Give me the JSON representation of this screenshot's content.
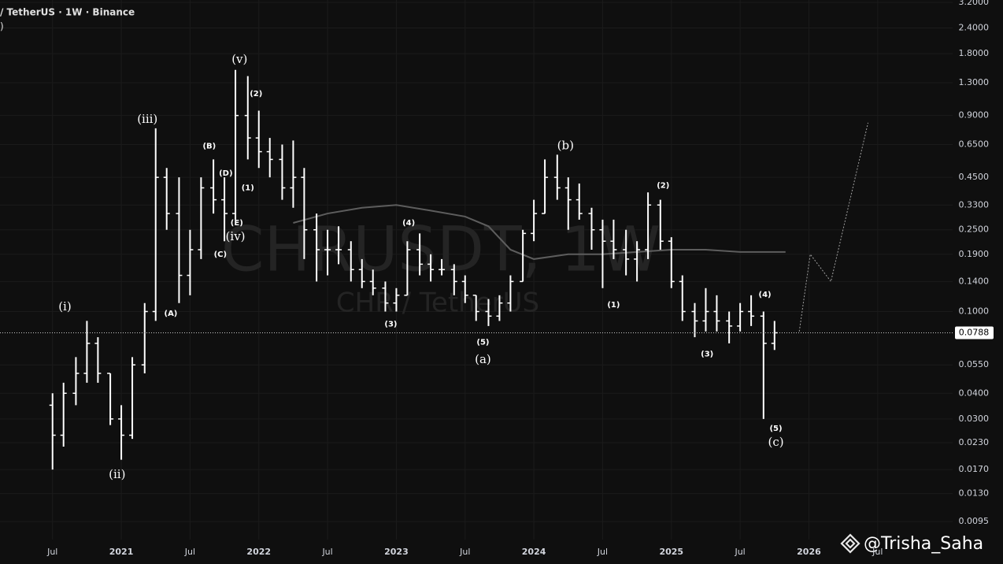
{
  "chart_data": {
    "type": "ohlc",
    "log_scale": true,
    "grid": true,
    "color": "#ffffff",
    "title": "/ TetherUS · 1W · Binance",
    "subtitle": ")",
    "watermark": "CHRUSDT, 1W",
    "watermark_subtitle": "CHR / TetherUS",
    "author": "@Trisha_Saha",
    "xlim": [
      2020.118,
      2027.045
    ],
    "ylim": [
      0.00776,
      3.285
    ],
    "xticks": [
      {
        "value": 2020.5,
        "label": "Jul"
      },
      2021,
      {
        "value": 2021.5,
        "label": "Jul"
      },
      2022,
      {
        "value": 2022.5,
        "label": "Jul"
      },
      2023,
      {
        "value": 2023.5,
        "label": "Jul"
      },
      2024,
      {
        "value": 2024.5,
        "label": "Jul"
      },
      2025,
      {
        "value": 2025.5,
        "label": "Jul"
      },
      2026,
      {
        "value": 2026.5,
        "label": "Jul"
      }
    ],
    "yticks": [
      0.0095,
      {
        "value": 0.013,
        "label": "0.0130"
      },
      {
        "value": 0.017,
        "label": "0.0170"
      },
      {
        "value": 0.023,
        "label": "0.0230"
      },
      {
        "value": 0.03,
        "label": "0.0300"
      },
      {
        "value": 0.04,
        "label": "0.0400"
      },
      {
        "value": 0.055,
        "label": "0.0550"
      },
      {
        "value": 0.1,
        "label": "0.1000"
      },
      {
        "value": 0.14,
        "label": "0.1400"
      },
      {
        "value": 0.19,
        "label": "0.1900"
      },
      {
        "value": 0.25,
        "label": "0.2500"
      },
      {
        "value": 0.33,
        "label": "0.3300"
      },
      {
        "value": 0.45,
        "label": "0.4500"
      },
      {
        "value": 0.65,
        "label": "0.6500"
      },
      {
        "value": 0.9,
        "label": "0.9000"
      },
      {
        "value": 1.3,
        "label": "1.3000"
      },
      {
        "value": 1.8,
        "label": "1.8000"
      },
      {
        "value": 2.4,
        "label": "2.4000"
      },
      {
        "value": 3.2,
        "label": "3.2000"
      }
    ],
    "x": [
      2020.5,
      2020.58,
      2020.67,
      2020.75,
      2020.83,
      2020.92,
      2021,
      2021.08,
      2021.17,
      2021.25,
      2021.33,
      2021.42,
      2021.5,
      2021.58,
      2021.67,
      2021.75,
      2021.83,
      2021.92,
      2022,
      2022.08,
      2022.17,
      2022.25,
      2022.33,
      2022.42,
      2022.5,
      2022.58,
      2022.67,
      2022.75,
      2022.83,
      2022.92,
      2023,
      2023.08,
      2023.17,
      2023.25,
      2023.33,
      2023.42,
      2023.5,
      2023.58,
      2023.67,
      2023.75,
      2023.83,
      2023.92,
      2024,
      2024.08,
      2024.17,
      2024.25,
      2024.33,
      2024.42,
      2024.5,
      2024.58,
      2024.67,
      2024.75,
      2024.83,
      2024.92,
      2025,
      2025.08,
      2025.17,
      2025.25,
      2025.33,
      2025.42,
      2025.5,
      2025.58,
      2025.67,
      2025.75
    ],
    "open": [
      0.035,
      0.025,
      0.04,
      0.05,
      0.07,
      0.05,
      0.03,
      0.025,
      0.055,
      0.1,
      0.45,
      0.3,
      0.15,
      0.2,
      0.4,
      0.35,
      0.3,
      0.9,
      0.7,
      0.6,
      0.55,
      0.4,
      0.45,
      0.25,
      0.2,
      0.2,
      0.2,
      0.16,
      0.14,
      0.13,
      0.11,
      0.12,
      0.2,
      0.17,
      0.16,
      0.16,
      0.14,
      0.12,
      0.1,
      0.095,
      0.11,
      0.14,
      0.24,
      0.3,
      0.45,
      0.4,
      0.35,
      0.3,
      0.25,
      0.22,
      0.2,
      0.18,
      0.2,
      0.33,
      0.22,
      0.14,
      0.1,
      0.09,
      0.1,
      0.09,
      0.085,
      0.1,
      0.095,
      0.07
    ],
    "high": [
      0.04,
      0.045,
      0.06,
      0.09,
      0.075,
      0.05,
      0.035,
      0.06,
      0.11,
      0.78,
      0.5,
      0.45,
      0.25,
      0.45,
      0.55,
      0.45,
      1.5,
      1.4,
      0.95,
      0.7,
      0.65,
      0.68,
      0.5,
      0.3,
      0.25,
      0.26,
      0.22,
      0.18,
      0.16,
      0.14,
      0.13,
      0.22,
      0.24,
      0.19,
      0.18,
      0.17,
      0.15,
      0.12,
      0.115,
      0.12,
      0.15,
      0.25,
      0.35,
      0.55,
      0.58,
      0.45,
      0.42,
      0.32,
      0.28,
      0.28,
      0.25,
      0.22,
      0.38,
      0.35,
      0.23,
      0.15,
      0.11,
      0.13,
      0.12,
      0.1,
      0.11,
      0.12,
      0.1,
      0.09
    ],
    "low": [
      0.017,
      0.022,
      0.035,
      0.045,
      0.045,
      0.028,
      0.019,
      0.024,
      0.05,
      0.09,
      0.25,
      0.11,
      0.12,
      0.18,
      0.3,
      0.22,
      0.28,
      0.55,
      0.5,
      0.45,
      0.35,
      0.32,
      0.18,
      0.14,
      0.15,
      0.17,
      0.14,
      0.13,
      0.12,
      0.1,
      0.1,
      0.12,
      0.15,
      0.14,
      0.15,
      0.12,
      0.11,
      0.09,
      0.085,
      0.09,
      0.1,
      0.14,
      0.22,
      0.3,
      0.35,
      0.25,
      0.28,
      0.2,
      0.13,
      0.18,
      0.15,
      0.14,
      0.18,
      0.2,
      0.13,
      0.09,
      0.075,
      0.08,
      0.08,
      0.07,
      0.08,
      0.085,
      0.03,
      0.065
    ],
    "close": [
      0.025,
      0.04,
      0.05,
      0.07,
      0.05,
      0.03,
      0.025,
      0.055,
      0.1,
      0.45,
      0.3,
      0.15,
      0.2,
      0.4,
      0.35,
      0.3,
      0.9,
      0.7,
      0.6,
      0.55,
      0.4,
      0.45,
      0.25,
      0.2,
      0.2,
      0.2,
      0.16,
      0.14,
      0.13,
      0.11,
      0.12,
      0.2,
      0.17,
      0.16,
      0.16,
      0.14,
      0.12,
      0.1,
      0.095,
      0.11,
      0.14,
      0.24,
      0.3,
      0.45,
      0.4,
      0.35,
      0.3,
      0.25,
      0.22,
      0.2,
      0.18,
      0.2,
      0.33,
      0.22,
      0.14,
      0.1,
      0.09,
      0.1,
      0.09,
      0.085,
      0.1,
      0.095,
      0.07,
      0.0788
    ],
    "moving_average": {
      "color": "#5d5d5d",
      "x": [
        2022.25,
        2022.5,
        2022.75,
        2023,
        2023.25,
        2023.5,
        2023.67,
        2023.83,
        2024,
        2024.25,
        2024.5,
        2024.75,
        2025,
        2025.25,
        2025.5,
        2025.83
      ],
      "values": [
        0.27,
        0.3,
        0.32,
        0.33,
        0.31,
        0.29,
        0.26,
        0.2,
        0.18,
        0.19,
        0.19,
        0.195,
        0.2,
        0.2,
        0.195,
        0.195
      ]
    },
    "projection": {
      "color": "#a0a0a0",
      "x": [
        2025.93,
        2026.01,
        2026.16,
        2026.43
      ],
      "values": [
        0.08,
        0.19,
        0.14,
        0.83
      ]
    },
    "last_price": {
      "value": 0.0788,
      "label": "0.0788"
    },
    "annotations": [
      {
        "text": "(i)",
        "x": 2020.59,
        "y": 0.105
      },
      {
        "text": "(ii)",
        "x": 2020.97,
        "y": 0.016
      },
      {
        "text": "(iii)",
        "x": 2021.19,
        "y": 0.86
      },
      {
        "text": "(iv)",
        "x": 2021.83,
        "y": 0.23
      },
      {
        "text": "(v)",
        "x": 2021.86,
        "y": 1.68
      },
      {
        "text": "(A)",
        "x": 2021.36,
        "y": 0.098
      },
      {
        "text": "(B)",
        "x": 2021.64,
        "y": 0.64
      },
      {
        "text": "(C)",
        "x": 2021.72,
        "y": 0.19
      },
      {
        "text": "(D)",
        "x": 2021.76,
        "y": 0.47
      },
      {
        "text": "(E)",
        "x": 2021.84,
        "y": 0.27
      },
      {
        "text": "(1)",
        "x": 2021.92,
        "y": 0.4
      },
      {
        "text": "(2)",
        "x": 2021.98,
        "y": 1.15
      },
      {
        "text": "(3)",
        "x": 2022.96,
        "y": 0.087
      },
      {
        "text": "(4)",
        "x": 2023.09,
        "y": 0.27
      },
      {
        "text": "(5)",
        "x": 2023.63,
        "y": 0.071
      },
      {
        "text": "(a)",
        "x": 2023.63,
        "y": 0.058
      },
      {
        "text": "(b)",
        "x": 2024.23,
        "y": 0.64
      },
      {
        "text": "(1)",
        "x": 2024.58,
        "y": 0.108
      },
      {
        "text": "(2)",
        "x": 2024.94,
        "y": 0.41
      },
      {
        "text": "(3)",
        "x": 2025.26,
        "y": 0.062
      },
      {
        "text": "(4)",
        "x": 2025.68,
        "y": 0.121
      },
      {
        "text": "(5)",
        "x": 2025.76,
        "y": 0.027
      },
      {
        "text": "(c)",
        "x": 2025.76,
        "y": 0.023
      }
    ]
  }
}
